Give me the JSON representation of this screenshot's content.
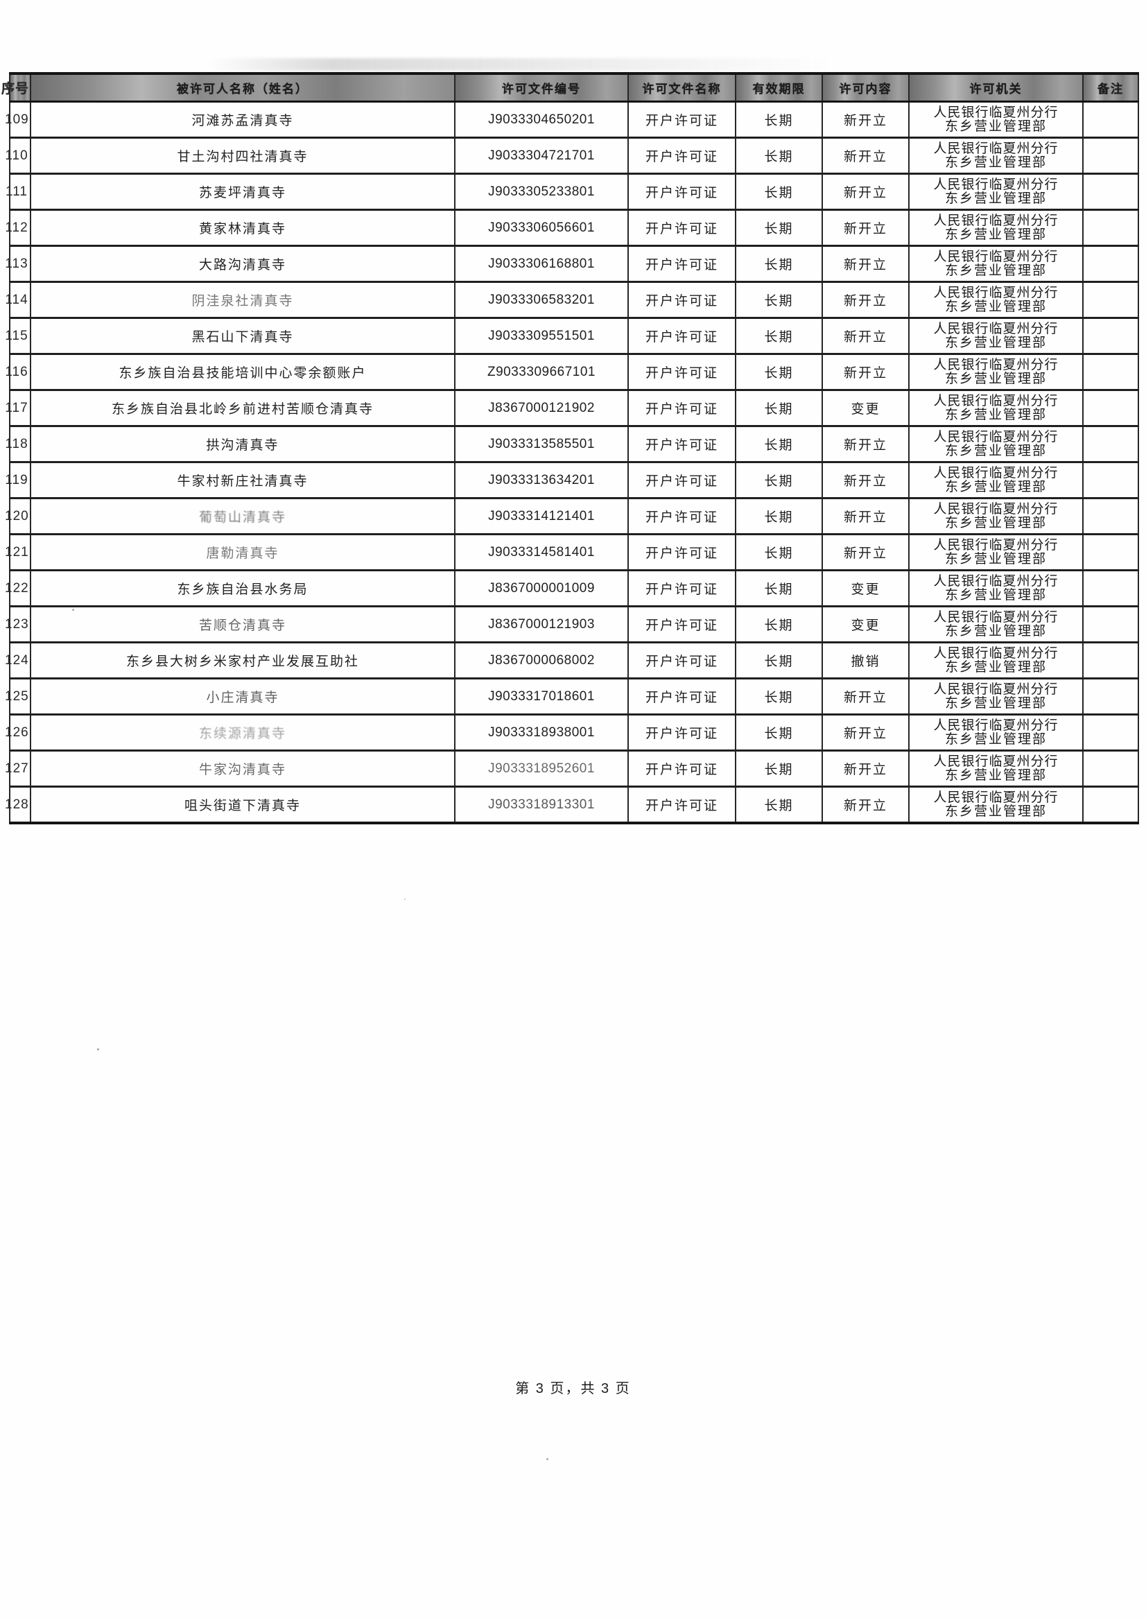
{
  "document": {
    "header": {
      "col_no": "序号",
      "col_name": "被许可人名称（姓名）",
      "col_doc_no": "许可文件编号",
      "col_doc_name": "许可文件名称",
      "col_validity": "有效期限",
      "col_content": "许可内容",
      "col_authority": "许可机关",
      "col_remark": "备注"
    },
    "rows": [
      {
        "no": "109",
        "name": "河滩苏孟清真寺",
        "doc_no": "J9033304650201",
        "doc_name": "开户许可证",
        "validity": "长期",
        "content": "新开立",
        "authority_line1": "人民银行临夏州分行",
        "authority_line2": "东乡营业管理部",
        "remark": ""
      },
      {
        "no": "110",
        "name": "甘土沟村四社清真寺",
        "doc_no": "J9033304721701",
        "doc_name": "开户许可证",
        "validity": "长期",
        "content": "新开立",
        "authority_line1": "人民银行临夏州分行",
        "authority_line2": "东乡营业管理部",
        "remark": ""
      },
      {
        "no": "111",
        "name": "苏麦坪清真寺",
        "doc_no": "J9033305233801",
        "doc_name": "开户许可证",
        "validity": "长期",
        "content": "新开立",
        "authority_line1": "人民银行临夏州分行",
        "authority_line2": "东乡营业管理部",
        "remark": ""
      },
      {
        "no": "112",
        "name": "黄家林清真寺",
        "doc_no": "J9033306056601",
        "doc_name": "开户许可证",
        "validity": "长期",
        "content": "新开立",
        "authority_line1": "人民银行临夏州分行",
        "authority_line2": "东乡营业管理部",
        "remark": ""
      },
      {
        "no": "113",
        "name": "大路沟清真寺",
        "doc_no": "J9033306168801",
        "doc_name": "开户许可证",
        "validity": "长期",
        "content": "新开立",
        "authority_line1": "人民银行临夏州分行",
        "authority_line2": "东乡营业管理部",
        "remark": ""
      },
      {
        "no": "114",
        "name": "阴洼泉社清真寺",
        "doc_no": "J9033306583201",
        "doc_name": "开户许可证",
        "validity": "长期",
        "content": "新开立",
        "authority_line1": "人民银行临夏州分行",
        "authority_line2": "东乡营业管理部",
        "remark": ""
      },
      {
        "no": "115",
        "name": "黑石山下清真寺",
        "doc_no": "J9033309551501",
        "doc_name": "开户许可证",
        "validity": "长期",
        "content": "新开立",
        "authority_line1": "人民银行临夏州分行",
        "authority_line2": "东乡营业管理部",
        "remark": ""
      },
      {
        "no": "116",
        "name": "东乡族自治县技能培训中心零余额账户",
        "doc_no": "Z9033309667101",
        "doc_name": "开户许可证",
        "validity": "长期",
        "content": "新开立",
        "authority_line1": "人民银行临夏州分行",
        "authority_line2": "东乡营业管理部",
        "remark": ""
      },
      {
        "no": "117",
        "name": "东乡族自治县北岭乡前进村苦顺仓清真寺",
        "doc_no": "J8367000121902",
        "doc_name": "开户许可证",
        "validity": "长期",
        "content": "变更",
        "authority_line1": "人民银行临夏州分行",
        "authority_line2": "东乡营业管理部",
        "remark": ""
      },
      {
        "no": "118",
        "name": "拱沟清真寺",
        "doc_no": "J9033313585501",
        "doc_name": "开户许可证",
        "validity": "长期",
        "content": "新开立",
        "authority_line1": "人民银行临夏州分行",
        "authority_line2": "东乡营业管理部",
        "remark": ""
      },
      {
        "no": "119",
        "name": "牛家村新庄社清真寺",
        "doc_no": "J9033313634201",
        "doc_name": "开户许可证",
        "validity": "长期",
        "content": "新开立",
        "authority_line1": "人民银行临夏州分行",
        "authority_line2": "东乡营业管理部",
        "remark": ""
      },
      {
        "no": "120",
        "name": "葡萄山清真寺",
        "doc_no": "J9033314121401",
        "doc_name": "开户许可证",
        "validity": "长期",
        "content": "新开立",
        "authority_line1": "人民银行临夏州分行",
        "authority_line2": "东乡营业管理部",
        "remark": ""
      },
      {
        "no": "121",
        "name": "唐勒清真寺",
        "doc_no": "J9033314581401",
        "doc_name": "开户许可证",
        "validity": "长期",
        "content": "新开立",
        "authority_line1": "人民银行临夏州分行",
        "authority_line2": "东乡营业管理部",
        "remark": ""
      },
      {
        "no": "122",
        "name": "东乡族自治县水务局",
        "doc_no": "J8367000001009",
        "doc_name": "开户许可证",
        "validity": "长期",
        "content": "变更",
        "authority_line1": "人民银行临夏州分行",
        "authority_line2": "东乡营业管理部",
        "remark": ""
      },
      {
        "no": "123",
        "name": "苦顺仓清真寺",
        "doc_no": "J8367000121903",
        "doc_name": "开户许可证",
        "validity": "长期",
        "content": "变更",
        "authority_line1": "人民银行临夏州分行",
        "authority_line2": "东乡营业管理部",
        "remark": ""
      },
      {
        "no": "124",
        "name": "东乡县大树乡米家村产业发展互助社",
        "doc_no": "J8367000068002",
        "doc_name": "开户许可证",
        "validity": "长期",
        "content": "撤销",
        "authority_line1": "人民银行临夏州分行",
        "authority_line2": "东乡营业管理部",
        "remark": ""
      },
      {
        "no": "125",
        "name": "小庄清真寺",
        "doc_no": "J9033317018601",
        "doc_name": "开户许可证",
        "validity": "长期",
        "content": "新开立",
        "authority_line1": "人民银行临夏州分行",
        "authority_line2": "东乡营业管理部",
        "remark": ""
      },
      {
        "no": "126",
        "name": "东续源清真寺",
        "doc_no": "J9033318938001",
        "doc_name": "开户许可证",
        "validity": "长期",
        "content": "新开立",
        "authority_line1": "人民银行临夏州分行",
        "authority_line2": "东乡营业管理部",
        "remark": ""
      },
      {
        "no": "127",
        "name": "牛家沟清真寺",
        "doc_no": "J9033318952601",
        "doc_name": "开户许可证",
        "validity": "长期",
        "content": "新开立",
        "authority_line1": "人民银行临夏州分行",
        "authority_line2": "东乡营业管理部",
        "remark": ""
      },
      {
        "no": "128",
        "name": "咀头街道下清真寺",
        "doc_no": "J9033318913301",
        "doc_name": "开户许可证",
        "validity": "长期",
        "content": "新开立",
        "authority_line1": "人民银行临夏州分行",
        "authority_line2": "东乡营业管理部",
        "remark": ""
      }
    ],
    "footer": {
      "page_text": "第 3 页，共 3 页"
    }
  }
}
